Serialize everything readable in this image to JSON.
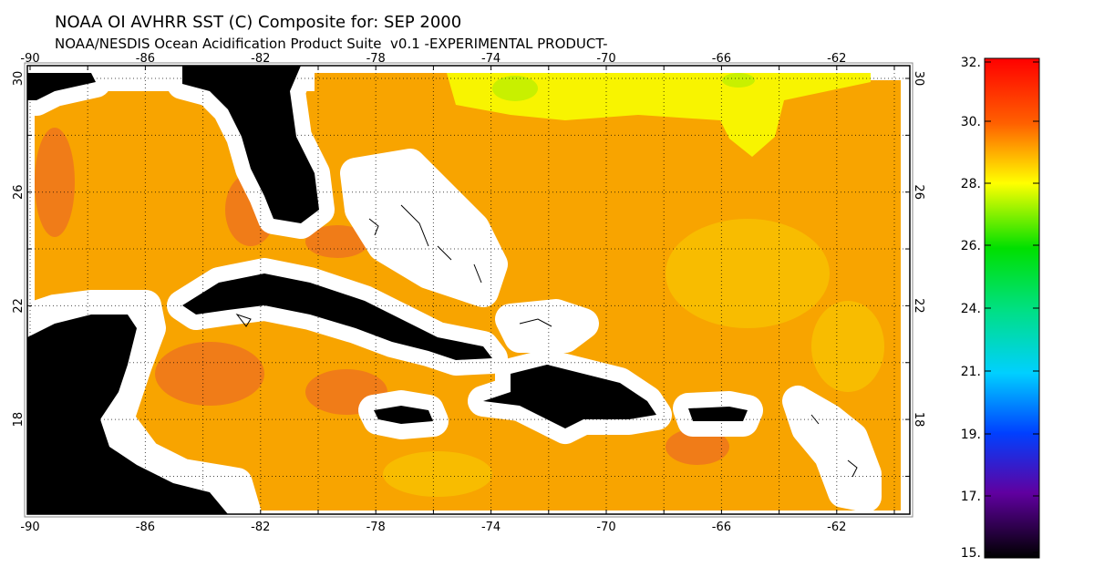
{
  "title": "NOAA OI AVHRR SST (C) Composite for: SEP 2000",
  "subtitle": "NOAA/NESDIS Ocean Acidification Product Suite  v0.1 -EXPERIMENTAL PRODUCT-",
  "lon_labels": [
    "-90",
    "-86",
    "-82",
    "-78",
    "-74",
    "-70",
    "-66",
    "-62"
  ],
  "lat_labels": [
    "30",
    "26",
    "22",
    "18"
  ],
  "colorbar_labels": [
    "32.",
    "30.",
    "28.",
    "26.",
    "24.",
    "21.",
    "19.",
    "17.",
    "15."
  ]
}
